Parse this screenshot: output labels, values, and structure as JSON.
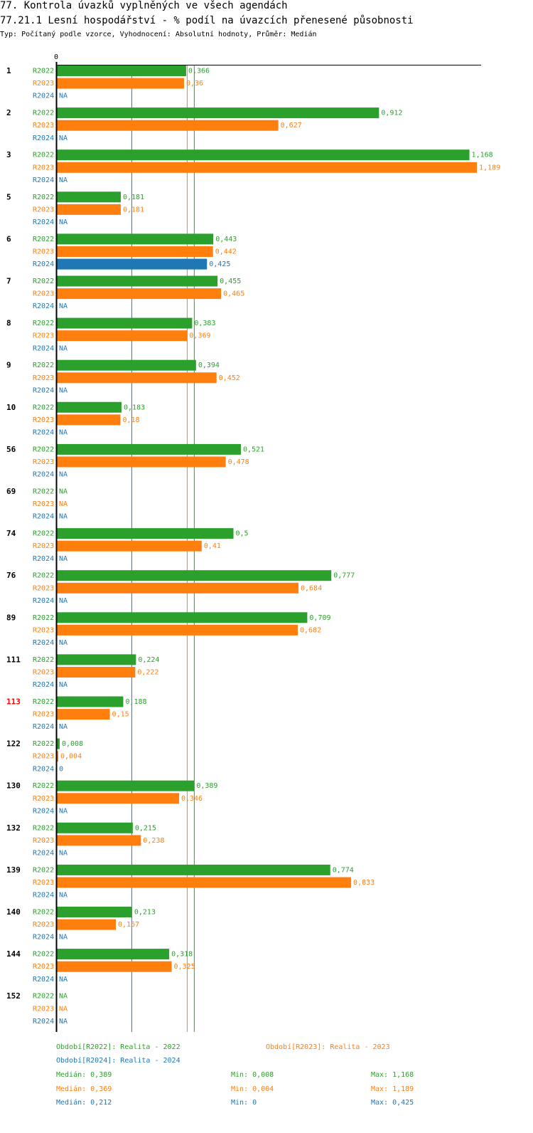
{
  "header": {
    "title": "77. Kontrola úvazků vyplněných ve všech agendách",
    "subtitle": "77.21.1 Lesní hospodářství - % podíl na úvazcích přenesené působnosti",
    "meta": "Typ: Počítaný podle vzorce, Vyhodnocení: Absolutní hodnoty, Průměr: Medián"
  },
  "colors": {
    "R2022": "#2ca02c",
    "R2023": "#ff7f0e",
    "R2024": "#1f77b4",
    "highlight": "#ff0000",
    "axis": "#000000"
  },
  "chart_data": {
    "type": "bar",
    "orientation": "horizontal",
    "axis_zero_label": "0",
    "xlim": [
      0,
      1.189
    ],
    "series_names": [
      "R2022",
      "R2023",
      "R2024"
    ],
    "na_label": "NA",
    "highlight_category": "113",
    "categories": [
      "1",
      "2",
      "3",
      "5",
      "6",
      "7",
      "8",
      "9",
      "10",
      "56",
      "69",
      "74",
      "76",
      "89",
      "111",
      "113",
      "122",
      "130",
      "132",
      "139",
      "140",
      "144",
      "152"
    ],
    "series": [
      {
        "name": "R2022",
        "labels": [
          "0,366",
          "0,912",
          "1,168",
          "0,181",
          "0,443",
          "0,455",
          "0,383",
          "0,394",
          "0,183",
          "0,521",
          "NA",
          "0,5",
          "0,777",
          "0,709",
          "0,224",
          "0,188",
          "0,008",
          "0,389",
          "0,215",
          "0,774",
          "0,213",
          "0,318",
          "NA"
        ],
        "values": [
          0.366,
          0.912,
          1.168,
          0.181,
          0.443,
          0.455,
          0.383,
          0.394,
          0.183,
          0.521,
          null,
          0.5,
          0.777,
          0.709,
          0.224,
          0.188,
          0.008,
          0.389,
          0.215,
          0.774,
          0.213,
          0.318,
          null
        ]
      },
      {
        "name": "R2023",
        "labels": [
          "0,36",
          "0,627",
          "1,189",
          "0,181",
          "0,442",
          "0,465",
          "0,369",
          "0,452",
          "0,18",
          "0,478",
          "NA",
          "0,41",
          "0,684",
          "0,682",
          "0,222",
          "0,15",
          "0,004",
          "0,346",
          "0,238",
          "0,833",
          "0,167",
          "0,325",
          "NA"
        ],
        "values": [
          0.36,
          0.627,
          1.189,
          0.181,
          0.442,
          0.465,
          0.369,
          0.452,
          0.18,
          0.478,
          null,
          0.41,
          0.684,
          0.682,
          0.222,
          0.15,
          0.004,
          0.346,
          0.238,
          0.833,
          0.167,
          0.325,
          null
        ]
      },
      {
        "name": "R2024",
        "labels": [
          "NA",
          "NA",
          "NA",
          "NA",
          "0,425",
          "NA",
          "NA",
          "NA",
          "NA",
          "NA",
          "NA",
          "NA",
          "NA",
          "NA",
          "NA",
          "NA",
          "0",
          "NA",
          "NA",
          "NA",
          "NA",
          "NA",
          "NA"
        ],
        "values": [
          null,
          null,
          null,
          null,
          0.425,
          null,
          null,
          null,
          null,
          null,
          null,
          null,
          null,
          null,
          null,
          null,
          0,
          null,
          null,
          null,
          null,
          null,
          null
        ]
      }
    ],
    "reference_lines": [
      {
        "series": "R2024",
        "value": 0.212
      },
      {
        "series": "R2023",
        "value": 0.369
      },
      {
        "series": "R2022",
        "value": 0.389
      }
    ]
  },
  "legend": {
    "r2022": "Období[R2022]: Realita - 2022",
    "r2023": "Období[R2023]: Realita - 2023",
    "r2024": "Období[R2024]: Realita - 2024",
    "median_2022": "Medián: 0,389",
    "min_2022": "Min: 0,008",
    "max_2022": "Max: 1,168",
    "median_2023": "Medián: 0,369",
    "min_2023": "Min: 0,004",
    "max_2023": "Max: 1,189",
    "median_2024": "Medián: 0,212",
    "min_2024": "Min: 0",
    "max_2024": "Max: 0,425"
  }
}
